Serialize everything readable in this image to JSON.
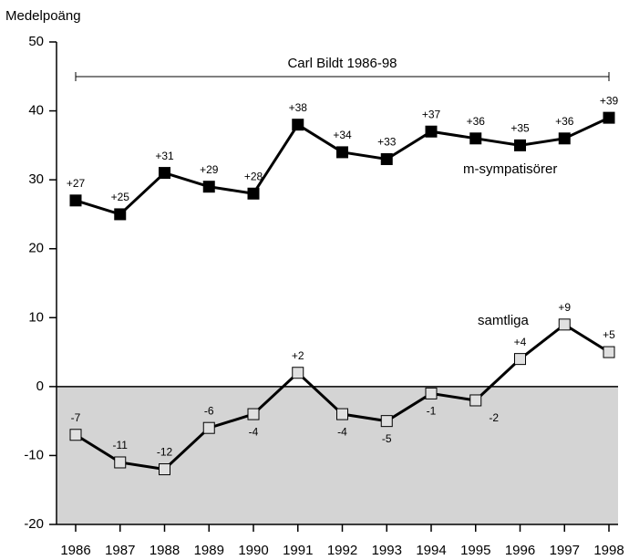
{
  "chart_data": {
    "type": "line",
    "y_axis_label": "Medelpoäng",
    "annotation": "Carl Bildt 1986-98",
    "categories": [
      "1986",
      "1987",
      "1988",
      "1989",
      "1990",
      "1991",
      "1992",
      "1993",
      "1994",
      "1995",
      "1996",
      "1997",
      "1998"
    ],
    "series": [
      {
        "name": "m-sympatisörer",
        "color": "#000000",
        "marker_fill": "#000000",
        "values": [
          27,
          25,
          31,
          29,
          28,
          38,
          34,
          33,
          37,
          36,
          35,
          36,
          39
        ],
        "value_labels": [
          "+27",
          "+25",
          "+31",
          "+29",
          "+28",
          "+38",
          "+34",
          "+33",
          "+37",
          "+36",
          "+35",
          "+36",
          "+39"
        ]
      },
      {
        "name": "samtliga",
        "color": "#000000",
        "marker_fill": "#e0e0e0",
        "values": [
          -7,
          -11,
          -12,
          -6,
          -4,
          2,
          -4,
          -5,
          -1,
          -2,
          4,
          9,
          5
        ],
        "value_labels": [
          "-7",
          "-11",
          "-12",
          "-6",
          "-4",
          "+2",
          "-4",
          "-5",
          "-1",
          "-2",
          "+4",
          "+9",
          "+5"
        ]
      }
    ],
    "ylim": [
      -20,
      50
    ],
    "yticks": [
      -20,
      -10,
      0,
      10,
      20,
      30,
      40,
      50
    ],
    "negative_shading": "#d4d4d4"
  }
}
